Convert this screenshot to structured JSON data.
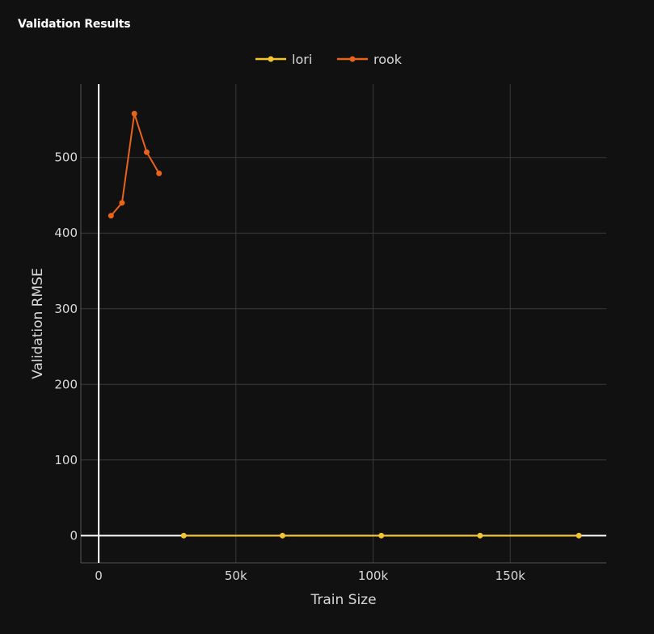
{
  "panel": {
    "title": "Validation Results"
  },
  "chart_data": {
    "type": "line",
    "title": "",
    "xlabel": "Train Size",
    "ylabel": "Validation RMSE",
    "xlim": [
      -6500,
      185000
    ],
    "ylim": [
      -36,
      597
    ],
    "x_ticks": [
      0,
      50000,
      100000,
      150000
    ],
    "x_tick_labels": [
      "0",
      "50k",
      "100k",
      "150k"
    ],
    "y_ticks": [
      0,
      100,
      200,
      300,
      400,
      500
    ],
    "y_tick_labels": [
      "0",
      "100",
      "200",
      "300",
      "400",
      "500"
    ],
    "grid": true,
    "legend_position": "top-center",
    "series": [
      {
        "name": "lori",
        "color": "#f5c431",
        "x": [
          31000,
          67000,
          103000,
          139000,
          175000
        ],
        "y": [
          0,
          0,
          0,
          0,
          0
        ]
      },
      {
        "name": "rook",
        "color": "#e8641b",
        "x": [
          4500,
          8500,
          13000,
          17500,
          22000
        ],
        "y": [
          423,
          440,
          558,
          507,
          479
        ]
      }
    ]
  }
}
